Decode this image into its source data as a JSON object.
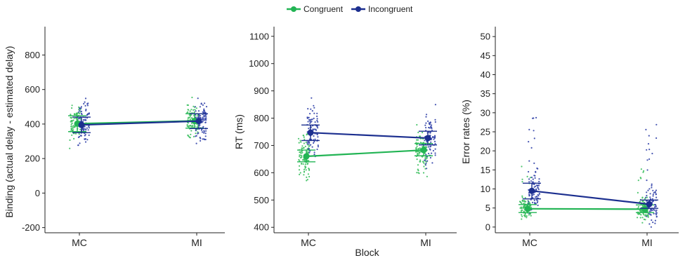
{
  "legend": {
    "items": [
      {
        "label": "Congruent",
        "color": "#22b454"
      },
      {
        "label": "Incongruent",
        "color": "#1c2f8f"
      }
    ]
  },
  "colors": {
    "congruent": "#22b454",
    "incongruent": "#1c2f8f",
    "congruent_dots": "#3cc05f",
    "incongruent_dots": "#3344aa",
    "axis": "#222222"
  },
  "chart_data": [
    {
      "type": "line",
      "title": "",
      "xlabel": "",
      "ylabel": "Binding (actual delay - estimated delay)",
      "categories": [
        "MC",
        "MI"
      ],
      "ylim": [
        -230,
        940
      ],
      "yticks": [
        -200,
        0,
        200,
        400,
        600,
        800
      ],
      "ytick_labels": [
        "-200",
        "0",
        "200",
        "400",
        "600",
        "800"
      ],
      "grid": false,
      "series": [
        {
          "name": "Congruent",
          "values": [
            402,
            418
          ],
          "ci_low": [
            356,
            376
          ],
          "ci_high": [
            448,
            460
          ]
        },
        {
          "name": "Incongruent",
          "values": [
            395,
            417
          ],
          "ci_low": [
            350,
            374
          ],
          "ci_high": [
            440,
            460
          ]
        }
      ]
    },
    {
      "type": "line",
      "title": "",
      "xlabel": "Block",
      "ylabel": "RT (ms)",
      "categories": [
        "MC",
        "MI"
      ],
      "ylim": [
        380,
        1120
      ],
      "yticks": [
        400,
        500,
        600,
        700,
        800,
        900,
        1000,
        1100
      ],
      "ytick_labels": [
        "400",
        "500",
        "600",
        "700",
        "800",
        "900",
        "1000",
        "1100"
      ],
      "grid": false,
      "series": [
        {
          "name": "Congruent",
          "values": [
            660,
            683
          ],
          "ci_low": [
            640,
            662
          ],
          "ci_high": [
            683,
            707
          ]
        },
        {
          "name": "Incongruent",
          "values": [
            747,
            727
          ],
          "ci_low": [
            718,
            702
          ],
          "ci_high": [
            775,
            752
          ]
        }
      ]
    },
    {
      "type": "line",
      "title": "",
      "xlabel": "",
      "ylabel": "Error rates (%)",
      "categories": [
        "MC",
        "MI"
      ],
      "ylim": [
        -1.5,
        51.5
      ],
      "yticks": [
        0,
        5,
        10,
        15,
        20,
        25,
        30,
        35,
        40,
        45,
        50
      ],
      "ytick_labels": [
        "0",
        "5",
        "10",
        "15",
        "20",
        "25",
        "30",
        "35",
        "40",
        "45",
        "50"
      ],
      "grid": false,
      "series": [
        {
          "name": "Congruent",
          "values": [
            4.8,
            4.7
          ],
          "ci_low": [
            3.8,
            3.8
          ],
          "ci_high": [
            5.9,
            5.8
          ]
        },
        {
          "name": "Incongruent",
          "values": [
            9.5,
            6.0
          ],
          "ci_low": [
            7.4,
            4.9
          ],
          "ci_high": [
            11.5,
            7.1
          ]
        }
      ]
    }
  ]
}
